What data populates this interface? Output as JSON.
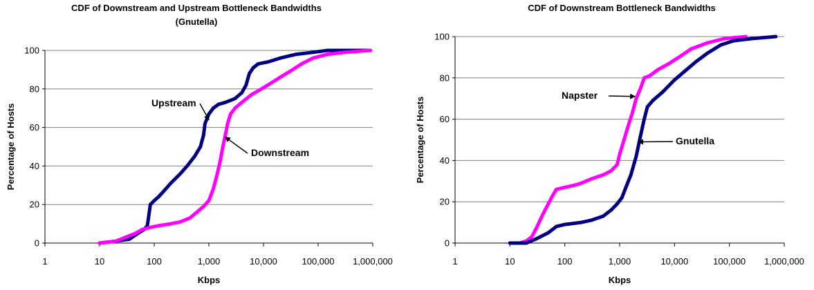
{
  "chart_data": [
    {
      "type": "line",
      "title": "CDF of Downstream and Upstream Bottleneck Bandwidths",
      "subtitle": "(Gnutella)",
      "xlabel": "Kbps",
      "ylabel": "Percentage of Hosts",
      "x_scale": "log",
      "xlim": [
        1,
        1000000
      ],
      "ylim": [
        0,
        100
      ],
      "x_ticks": [
        "1",
        "10",
        "100",
        "1,000",
        "10,000",
        "100,000",
        "1,000,000"
      ],
      "y_ticks": [
        "0",
        "20",
        "40",
        "60",
        "80",
        "100"
      ],
      "grid": "horizontal",
      "series": [
        {
          "name": "Upstream",
          "color": "#000080",
          "points": [
            [
              10,
              0
            ],
            [
              20,
              1
            ],
            [
              35,
              2
            ],
            [
              50,
              5
            ],
            [
              65,
              7
            ],
            [
              75,
              9
            ],
            [
              85,
              20
            ],
            [
              100,
              22
            ],
            [
              120,
              24
            ],
            [
              150,
              27
            ],
            [
              200,
              31
            ],
            [
              300,
              36
            ],
            [
              400,
              40
            ],
            [
              550,
              45
            ],
            [
              700,
              50
            ],
            [
              800,
              56
            ],
            [
              850,
              62
            ],
            [
              1000,
              67
            ],
            [
              1200,
              70
            ],
            [
              1500,
              72
            ],
            [
              2000,
              73
            ],
            [
              3000,
              75
            ],
            [
              4000,
              78
            ],
            [
              4800,
              82
            ],
            [
              5500,
              88
            ],
            [
              6500,
              91
            ],
            [
              8000,
              93
            ],
            [
              12000,
              94
            ],
            [
              20000,
              96
            ],
            [
              40000,
              98
            ],
            [
              80000,
              99
            ],
            [
              150000,
              100
            ],
            [
              300000,
              100
            ],
            [
              900000,
              100
            ]
          ]
        },
        {
          "name": "Downstream",
          "color": "#ff00ff",
          "points": [
            [
              10,
              0
            ],
            [
              20,
              1
            ],
            [
              30,
              3
            ],
            [
              45,
              5
            ],
            [
              60,
              7
            ],
            [
              80,
              8
            ],
            [
              120,
              9
            ],
            [
              200,
              10
            ],
            [
              300,
              11
            ],
            [
              450,
              13
            ],
            [
              600,
              16
            ],
            [
              800,
              19
            ],
            [
              1000,
              22
            ],
            [
              1200,
              28
            ],
            [
              1400,
              35
            ],
            [
              1600,
              42
            ],
            [
              1800,
              50
            ],
            [
              2000,
              56
            ],
            [
              2200,
              62
            ],
            [
              2500,
              67
            ],
            [
              3000,
              70
            ],
            [
              4000,
              73
            ],
            [
              6000,
              77
            ],
            [
              8000,
              79
            ],
            [
              12000,
              82
            ],
            [
              20000,
              86
            ],
            [
              30000,
              89
            ],
            [
              50000,
              93
            ],
            [
              80000,
              96
            ],
            [
              150000,
              98
            ],
            [
              300000,
              99
            ],
            [
              900000,
              100
            ]
          ]
        }
      ],
      "annotations": [
        {
          "text": "Upstream",
          "target_x": 1000,
          "target_y": 64
        },
        {
          "text": "Downstream",
          "target_x": 2000,
          "target_y": 55
        }
      ]
    },
    {
      "type": "line",
      "title": "CDF of Downstream Bottleneck Bandwidths",
      "xlabel": "Kbps",
      "ylabel": "Percentage of Hosts",
      "x_scale": "log",
      "xlim": [
        1,
        1000000
      ],
      "ylim": [
        0,
        100
      ],
      "x_ticks": [
        "1",
        "10",
        "100",
        "1,000",
        "10,000",
        "100,000",
        "1,000,000"
      ],
      "y_ticks": [
        "0",
        "20",
        "40",
        "60",
        "80",
        "100"
      ],
      "grid": "horizontal",
      "series": [
        {
          "name": "Napster",
          "color": "#ff00ff",
          "points": [
            [
              10,
              0
            ],
            [
              15,
              0
            ],
            [
              20,
              1
            ],
            [
              25,
              3
            ],
            [
              30,
              7
            ],
            [
              40,
              14
            ],
            [
              50,
              19
            ],
            [
              60,
              23
            ],
            [
              70,
              26
            ],
            [
              100,
              27
            ],
            [
              150,
              28
            ],
            [
              200,
              29
            ],
            [
              300,
              31
            ],
            [
              500,
              33
            ],
            [
              700,
              35
            ],
            [
              900,
              38
            ],
            [
              1000,
              43
            ],
            [
              1200,
              50
            ],
            [
              1400,
              56
            ],
            [
              1700,
              63
            ],
            [
              2000,
              70
            ],
            [
              2400,
              75
            ],
            [
              2800,
              80
            ],
            [
              3500,
              81
            ],
            [
              5000,
              84
            ],
            [
              8000,
              87
            ],
            [
              12000,
              90
            ],
            [
              20000,
              94
            ],
            [
              40000,
              97
            ],
            [
              80000,
              99
            ],
            [
              200000,
              100
            ]
          ]
        },
        {
          "name": "Gnutella",
          "color": "#000080",
          "points": [
            [
              10,
              0
            ],
            [
              15,
              0
            ],
            [
              20,
              0
            ],
            [
              30,
              2
            ],
            [
              50,
              5
            ],
            [
              70,
              8
            ],
            [
              100,
              9
            ],
            [
              200,
              10
            ],
            [
              300,
              11
            ],
            [
              500,
              13
            ],
            [
              700,
              16
            ],
            [
              900,
              19
            ],
            [
              1100,
              22
            ],
            [
              1300,
              27
            ],
            [
              1600,
              33
            ],
            [
              2000,
              42
            ],
            [
              2400,
              52
            ],
            [
              2800,
              60
            ],
            [
              3200,
              66
            ],
            [
              4000,
              69
            ],
            [
              6000,
              73
            ],
            [
              10000,
              79
            ],
            [
              15000,
              83
            ],
            [
              25000,
              88
            ],
            [
              40000,
              92
            ],
            [
              70000,
              96
            ],
            [
              120000,
              98
            ],
            [
              250000,
              99
            ],
            [
              700000,
              100
            ]
          ]
        }
      ],
      "annotations": [
        {
          "text": "Napster",
          "target_x": 1900,
          "target_y": 71
        },
        {
          "text": "Gnutella",
          "target_x": 2200,
          "target_y": 49
        }
      ]
    }
  ]
}
